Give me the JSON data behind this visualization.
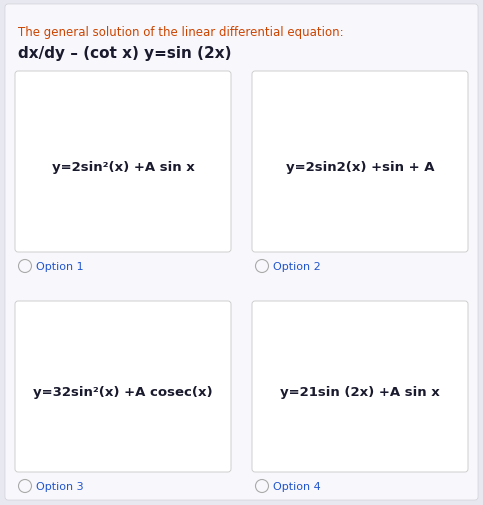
{
  "background_color": "#f2f2f7",
  "card_bg": "#ffffff",
  "question_text": "The general solution of the linear differential equation:",
  "question_color": "#cc4400",
  "equation_text": "dx/dy – (cot x) y=sin (2x)",
  "equation_color": "#1a1a2e",
  "options": [
    {
      "label": "Option 1",
      "formula": "y=2sin²(x) +A sin x"
    },
    {
      "label": "Option 2",
      "formula": "y=2sin2(x) +sin + A"
    },
    {
      "label": "Option 3",
      "formula": "y=32sin²(x) +A cosec(x)"
    },
    {
      "label": "Option 4",
      "formula": "y=21sin (2x) +A sin x"
    }
  ],
  "option_label_color": "#2255cc",
  "card_border_color": "#c8c8c8",
  "formula_color": "#1a1a2e",
  "formula_fontsize": 9.5,
  "question_fontsize": 8.5,
  "equation_fontsize": 11,
  "option_label_fontsize": 8,
  "outer_bg": "#e8e8f0",
  "inner_bg": "#f8f8fc"
}
